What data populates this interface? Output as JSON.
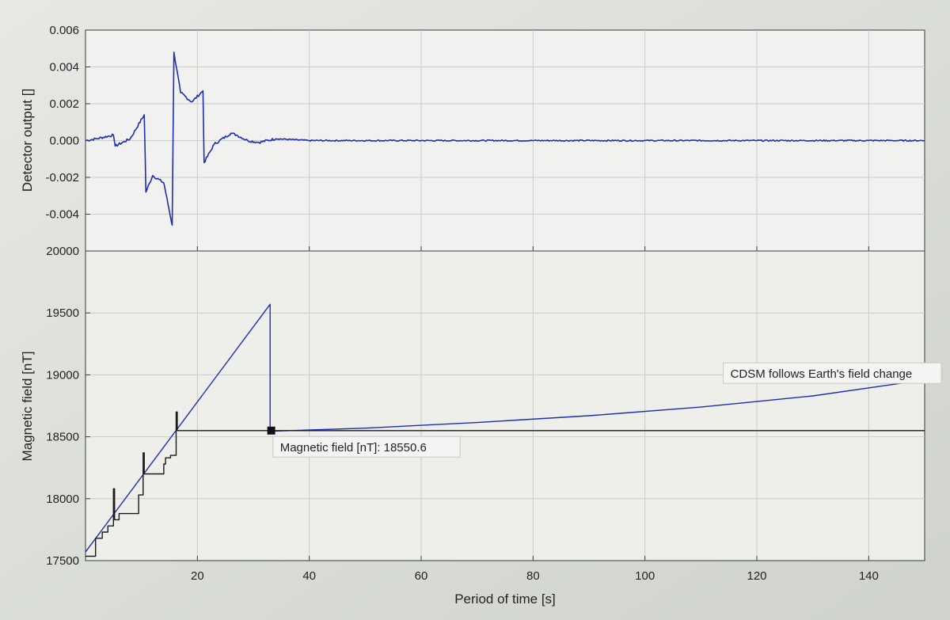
{
  "chart_data": [
    {
      "type": "line",
      "panel": "top",
      "xlabel": "",
      "ylabel": "Detector output []",
      "xlim": [
        0,
        150
      ],
      "ylim": [
        -0.006,
        0.006
      ],
      "yticks": [
        -0.006,
        -0.004,
        -0.002,
        0.0,
        0.002,
        0.004,
        0.006
      ],
      "ytick_labels": [
        "",
        "-0.004",
        "-0.002",
        "0.000",
        "0.002",
        "0.004",
        "0.006"
      ],
      "xticks": [
        20,
        40,
        60,
        80,
        100,
        120,
        140
      ],
      "grid": true,
      "line_color": "#1f2db0",
      "series": [
        {
          "x": [
            0,
            2,
            5,
            5.3,
            8,
            10.5,
            10.8,
            12,
            14,
            15.5,
            15.8,
            17,
            19,
            21,
            21.2,
            23,
            26,
            27,
            29,
            31,
            34,
            40,
            60,
            80,
            100,
            120,
            140,
            150
          ],
          "y": [
            0.0,
            0.0001,
            0.0003,
            -0.0003,
            0.0001,
            0.0014,
            -0.0028,
            -0.0019,
            -0.0023,
            -0.0046,
            0.0048,
            0.0026,
            0.0021,
            0.0027,
            -0.0012,
            -0.0002,
            0.0004,
            0.0003,
            0.0,
            -0.0001,
            0.0001,
            0.0,
            0.0,
            0.0,
            0.0,
            0.0,
            0.0,
            0.0
          ]
        }
      ]
    },
    {
      "type": "line",
      "panel": "bottom",
      "xlabel": "Period of time [s]",
      "ylabel": "Magnetic field [nT]",
      "xlim": [
        0,
        150
      ],
      "ylim": [
        17500,
        20000
      ],
      "yticks": [
        17500,
        18000,
        18500,
        19000,
        19500,
        20000
      ],
      "ytick_labels": [
        "17500",
        "18000",
        "18500",
        "19000",
        "19500",
        "20000"
      ],
      "xticks": [
        20,
        40,
        60,
        80,
        100,
        120,
        140
      ],
      "xtick_labels": [
        "20",
        "40",
        "60",
        "80",
        "100",
        "120",
        "140"
      ],
      "grid": true,
      "series": [
        {
          "color": "#1f2db0",
          "x": [
            0,
            33,
            33,
            33.4,
            50,
            70,
            90,
            110,
            130,
            150
          ],
          "y": [
            17570,
            19570,
            18550,
            18545,
            18570,
            18615,
            18670,
            18740,
            18830,
            18960
          ]
        },
        {
          "color": "#1a1a1a",
          "x": [
            0,
            1.8,
            1.8,
            3,
            3,
            4,
            4,
            5,
            5,
            5.2,
            5.2,
            6,
            6,
            9.5,
            9.5,
            10.3,
            10.3,
            10.5,
            10.5,
            11,
            11,
            14,
            14,
            14.3,
            14.3,
            15.2,
            15.2,
            16.2,
            16.2,
            16.4,
            16.4,
            17.5,
            17.5,
            150
          ],
          "y": [
            17535,
            17535,
            17680,
            17680,
            17730,
            17730,
            17780,
            17780,
            18080,
            18080,
            17830,
            17830,
            17880,
            17880,
            18030,
            18030,
            18370,
            18370,
            18200,
            18200,
            18200,
            18200,
            18280,
            18280,
            18330,
            18330,
            18350,
            18350,
            18700,
            18700,
            18550,
            18550,
            18550,
            18550
          ]
        }
      ],
      "annotations": [
        {
          "text": "CDSM follows Earth's field change",
          "x": 114,
          "y": 18995
        },
        {
          "text": "Magnetic field [nT]: 18550.6",
          "marker": [
            33.2,
            18550
          ],
          "x": 33.5,
          "y": 18400
        }
      ]
    }
  ]
}
